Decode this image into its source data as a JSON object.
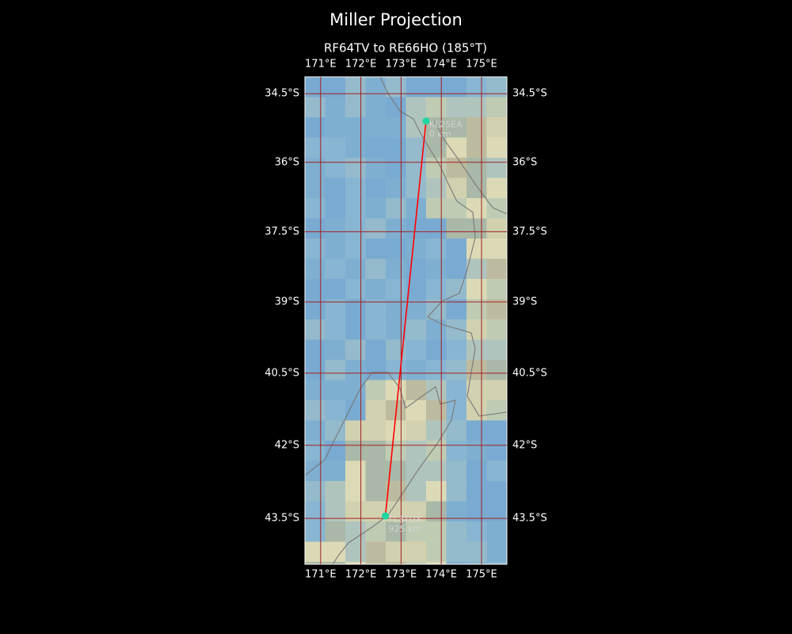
{
  "title": "Miller Projection",
  "subtitle": "RF64TV to RE66HO (185°T)",
  "map": {
    "projection": "miller",
    "xlim": [
      170.61,
      175.63
    ],
    "ylim": [
      -44.43,
      -34.13
    ],
    "xticks": [
      {
        "value": 171,
        "label": "171°E"
      },
      {
        "value": 172,
        "label": "172°E"
      },
      {
        "value": 173,
        "label": "173°E"
      },
      {
        "value": 174,
        "label": "174°E"
      },
      {
        "value": 175,
        "label": "175°E"
      }
    ],
    "yticks": [
      {
        "value": -34.5,
        "label": "34.5°S"
      },
      {
        "value": -36,
        "label": "36°S"
      },
      {
        "value": -37.5,
        "label": "37.5°S"
      },
      {
        "value": -39,
        "label": "39°S"
      },
      {
        "value": -40.5,
        "label": "40.5°S"
      },
      {
        "value": -42,
        "label": "42°S"
      },
      {
        "value": -43.5,
        "label": "43.5°S"
      }
    ],
    "grid_color": "#a02020",
    "route_color": "#ff0000",
    "marker_color": "#1ed6a0",
    "points": [
      {
        "label": "KL2SEA",
        "distance_label": "0 km",
        "lon": 173.62,
        "lat": -35.1
      },
      {
        "label": "FL3TUX",
        "distance_label": "925 km",
        "lon": 172.61,
        "lat": -43.45
      }
    ]
  }
}
